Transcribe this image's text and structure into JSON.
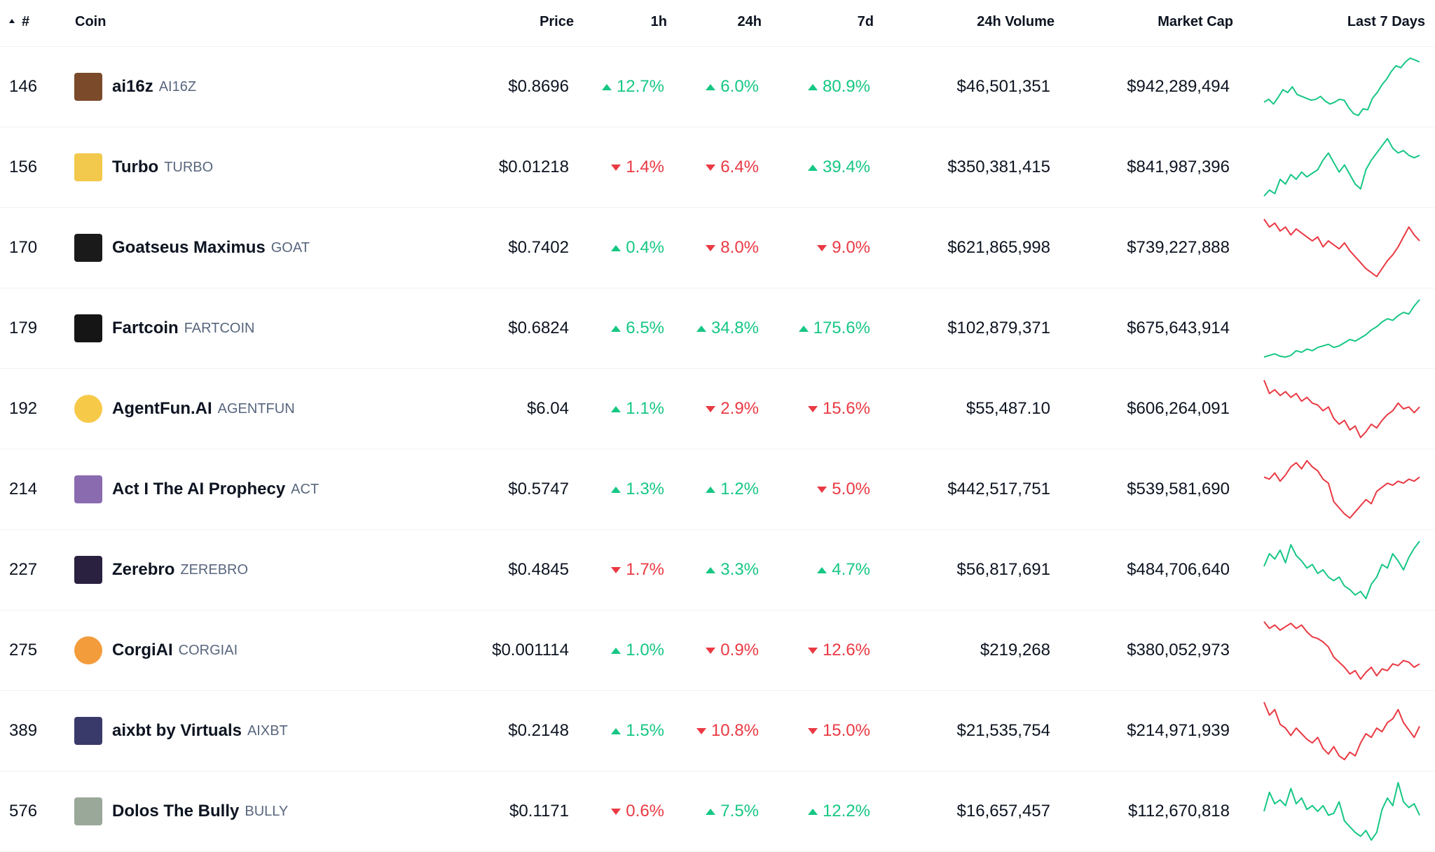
{
  "colors": {
    "up": "#16c784",
    "down": "#ea3943",
    "text": "#0d1421",
    "muted": "#58667e"
  },
  "header": {
    "rank": "#",
    "coin": "Coin",
    "price": "Price",
    "h1": "1h",
    "h24": "24h",
    "d7": "7d",
    "volume": "24h Volume",
    "market_cap": "Market Cap",
    "last7": "Last 7 Days"
  },
  "rows": [
    {
      "rank": "146",
      "name": "ai16z",
      "symbol": "AI16Z",
      "price": "$0.8696",
      "h1": "12.7%",
      "h1_dir": "up",
      "h24": "6.0%",
      "h24_dir": "up",
      "d7": "80.9%",
      "d7_dir": "up",
      "volume": "$46,501,351",
      "market_cap": "$942,289,494",
      "logo_icon": "ai16z-logo-icon",
      "logo_color": "#7a4a2a",
      "spark_trend": "up",
      "spark": [
        42,
        45,
        40,
        47,
        55,
        52,
        58,
        50,
        48,
        46,
        44,
        45,
        48,
        43,
        40,
        42,
        45,
        44,
        36,
        30,
        28,
        35,
        34,
        46,
        52,
        60,
        66,
        74,
        80,
        78,
        84,
        88,
        86,
        84
      ]
    },
    {
      "rank": "156",
      "name": "Turbo",
      "symbol": "TURBO",
      "price": "$0.01218",
      "h1": "1.4%",
      "h1_dir": "dn",
      "h24": "6.4%",
      "h24_dir": "dn",
      "d7": "39.4%",
      "d7_dir": "up",
      "volume": "$350,381,415",
      "market_cap": "$841,987,396",
      "logo_icon": "turbo-logo-icon",
      "logo_color": "#f2c94c",
      "spark_trend": "up",
      "spark": [
        30,
        35,
        32,
        44,
        40,
        48,
        44,
        50,
        46,
        49,
        52,
        60,
        66,
        58,
        50,
        56,
        48,
        40,
        36,
        52,
        60,
        66,
        72,
        78,
        70,
        66,
        68,
        64,
        62,
        64
      ]
    },
    {
      "rank": "170",
      "name": "Goatseus Maximus",
      "symbol": "GOAT",
      "price": "$0.7402",
      "h1": "0.4%",
      "h1_dir": "up",
      "h24": "8.0%",
      "h24_dir": "dn",
      "d7": "9.0%",
      "d7_dir": "dn",
      "volume": "$621,865,998",
      "market_cap": "$739,227,888",
      "logo_icon": "goat-logo-icon",
      "logo_color": "#1a1a1a",
      "spark_trend": "down",
      "spark": [
        88,
        80,
        84,
        76,
        80,
        72,
        78,
        74,
        70,
        66,
        70,
        60,
        66,
        62,
        58,
        64,
        56,
        50,
        44,
        38,
        34,
        30,
        38,
        46,
        52,
        60,
        70,
        80,
        72,
        66
      ]
    },
    {
      "rank": "179",
      "name": "Fartcoin",
      "symbol": "FARTCOIN",
      "price": "$0.6824",
      "h1": "6.5%",
      "h1_dir": "up",
      "h24": "34.8%",
      "h24_dir": "up",
      "d7": "175.6%",
      "d7_dir": "up",
      "volume": "$102,879,371",
      "market_cap": "$675,643,914",
      "logo_icon": "fartcoin-logo-icon",
      "logo_color": "#151515",
      "spark_trend": "up",
      "spark": [
        12,
        14,
        16,
        13,
        12,
        14,
        20,
        18,
        22,
        20,
        24,
        26,
        28,
        24,
        26,
        30,
        34,
        32,
        36,
        40,
        46,
        50,
        56,
        60,
        58,
        64,
        68,
        66,
        76,
        84
      ]
    },
    {
      "rank": "192",
      "name": "AgentFun.AI",
      "symbol": "AGENTFUN",
      "price": "$6.04",
      "h1": "1.1%",
      "h1_dir": "up",
      "h24": "2.9%",
      "h24_dir": "dn",
      "d7": "15.6%",
      "d7_dir": "dn",
      "volume": "$55,487.10",
      "market_cap": "$606,264,091",
      "logo_icon": "agentfun-logo-icon",
      "logo_color": "#f7c948",
      "spark_trend": "down",
      "spark": [
        88,
        74,
        78,
        72,
        76,
        70,
        74,
        66,
        70,
        64,
        62,
        56,
        60,
        48,
        42,
        46,
        36,
        40,
        28,
        34,
        42,
        38,
        46,
        52,
        56,
        64,
        58,
        60,
        54,
        60
      ]
    },
    {
      "rank": "214",
      "name": "Act I The AI Prophecy",
      "symbol": "ACT",
      "price": "$0.5747",
      "h1": "1.3%",
      "h1_dir": "up",
      "h24": "1.2%",
      "h24_dir": "up",
      "d7": "5.0%",
      "d7_dir": "dn",
      "volume": "$442,517,751",
      "market_cap": "$539,581,690",
      "logo_icon": "act-logo-icon",
      "logo_color": "#8a6bb0",
      "spark_trend": "down",
      "spark": [
        64,
        62,
        68,
        60,
        66,
        74,
        78,
        72,
        80,
        74,
        70,
        62,
        58,
        40,
        34,
        28,
        24,
        30,
        36,
        42,
        38,
        50,
        54,
        58,
        56,
        60,
        58,
        62,
        60,
        64
      ]
    },
    {
      "rank": "227",
      "name": "Zerebro",
      "symbol": "ZEREBRO",
      "price": "$0.4845",
      "h1": "1.7%",
      "h1_dir": "dn",
      "h24": "3.3%",
      "h24_dir": "up",
      "d7": "4.7%",
      "d7_dir": "up",
      "volume": "$56,817,691",
      "market_cap": "$484,706,640",
      "logo_icon": "zerebro-logo-icon",
      "logo_color": "#2a2140",
      "spark_trend": "up",
      "spark": [
        56,
        70,
        64,
        74,
        60,
        80,
        68,
        62,
        54,
        58,
        48,
        52,
        44,
        40,
        44,
        34,
        30,
        24,
        28,
        20,
        36,
        44,
        58,
        54,
        70,
        62,
        52,
        66,
        76,
        84
      ]
    },
    {
      "rank": "275",
      "name": "CorgiAI",
      "symbol": "CORGIAI",
      "price": "$0.001114",
      "h1": "1.0%",
      "h1_dir": "up",
      "h24": "0.9%",
      "h24_dir": "dn",
      "d7": "12.6%",
      "d7_dir": "dn",
      "volume": "$219,268",
      "market_cap": "$380,052,973",
      "logo_icon": "corgiai-logo-icon",
      "logo_color": "#f39c3c",
      "spark_trend": "down",
      "spark": [
        88,
        80,
        84,
        78,
        82,
        86,
        80,
        84,
        76,
        70,
        68,
        64,
        58,
        46,
        40,
        34,
        26,
        30,
        20,
        28,
        34,
        24,
        32,
        30,
        38,
        36,
        42,
        40,
        34,
        38
      ]
    },
    {
      "rank": "389",
      "name": "aixbt by Virtuals",
      "symbol": "AIXBT",
      "price": "$0.2148",
      "h1": "1.5%",
      "h1_dir": "up",
      "h24": "10.8%",
      "h24_dir": "dn",
      "d7": "15.0%",
      "d7_dir": "dn",
      "volume": "$21,535,754",
      "market_cap": "$214,971,939",
      "logo_icon": "aixbt-logo-icon",
      "logo_color": "#3a3a6a",
      "spark_trend": "down",
      "spark": [
        84,
        70,
        76,
        60,
        56,
        48,
        56,
        50,
        44,
        40,
        46,
        34,
        28,
        36,
        26,
        22,
        30,
        26,
        40,
        50,
        46,
        56,
        52,
        62,
        66,
        76,
        62,
        54,
        46,
        58
      ]
    },
    {
      "rank": "576",
      "name": "Dolos The Bully",
      "symbol": "BULLY",
      "price": "$0.1171",
      "h1": "0.6%",
      "h1_dir": "dn",
      "h24": "7.5%",
      "h24_dir": "up",
      "d7": "12.2%",
      "d7_dir": "up",
      "volume": "$16,657,457",
      "market_cap": "$112,670,818",
      "logo_icon": "bully-logo-icon",
      "logo_color": "#9aa89a",
      "spark_trend": "up",
      "spark": [
        50,
        70,
        58,
        62,
        56,
        74,
        58,
        64,
        52,
        56,
        50,
        56,
        46,
        48,
        60,
        40,
        34,
        28,
        24,
        30,
        20,
        28,
        52,
        64,
        56,
        80,
        60,
        54,
        58,
        46
      ]
    }
  ]
}
